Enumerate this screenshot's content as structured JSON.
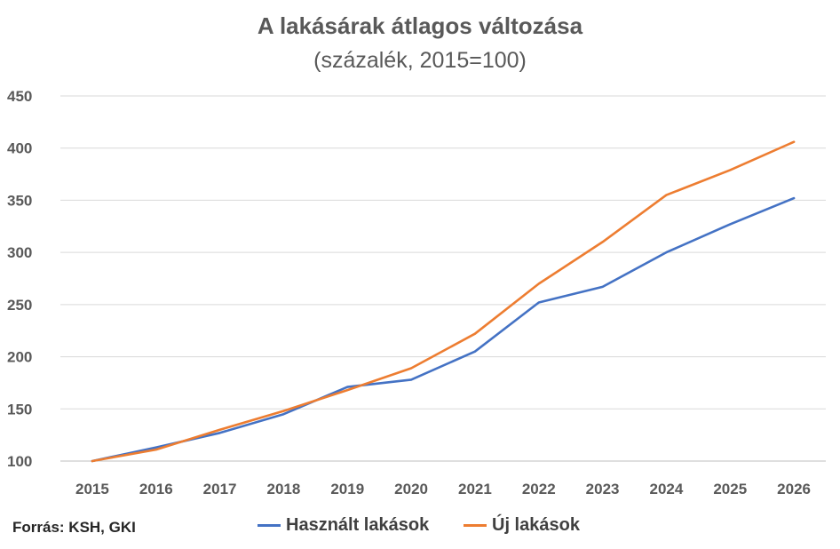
{
  "chart_data": {
    "type": "line",
    "title": "A lakásárak átlagos változása",
    "subtitle": "(százalék, 2015=100)",
    "categories": [
      "2015",
      "2016",
      "2017",
      "2018",
      "2019",
      "2020",
      "2021",
      "2022",
      "2023",
      "2024",
      "2025",
      "2026"
    ],
    "ylim": [
      100,
      450
    ],
    "yticks": [
      100,
      150,
      200,
      250,
      300,
      350,
      400,
      450
    ],
    "grid": true,
    "legend_position": "bottom",
    "series": [
      {
        "name": "Használt lakások",
        "color": "#4472C4",
        "values": [
          100,
          113,
          127,
          145,
          171,
          178,
          205,
          252,
          267,
          300,
          327,
          352
        ]
      },
      {
        "name": "Új lakások",
        "color": "#ED7D31",
        "values": [
          100,
          111,
          130,
          148,
          168,
          189,
          222,
          270,
          310,
          355,
          379,
          406
        ]
      }
    ],
    "source": "Forrás: KSH, GKI"
  }
}
